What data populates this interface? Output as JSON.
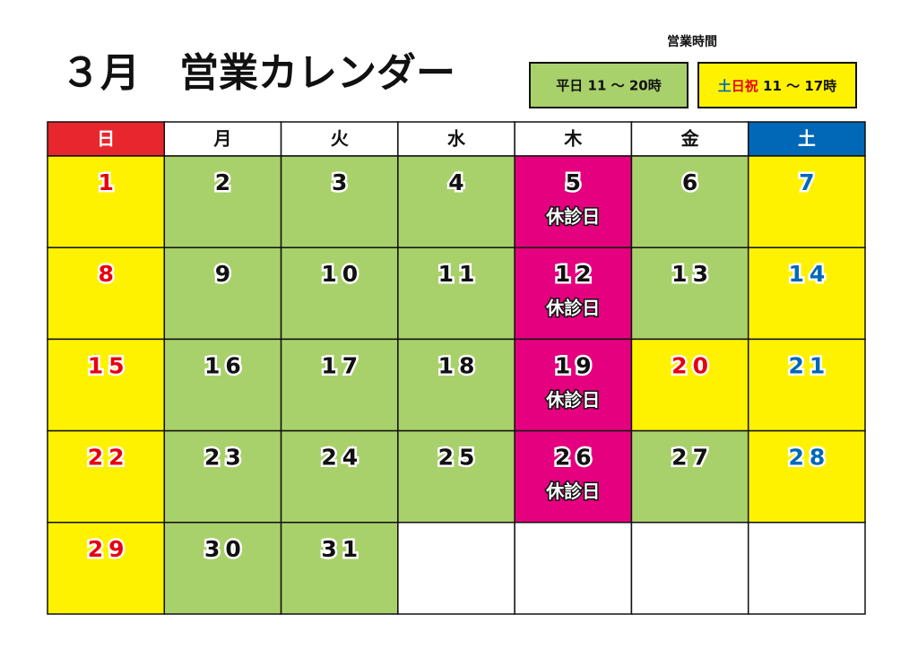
{
  "title": "３月　営業カレンダー",
  "hours": {
    "heading": "営業時間",
    "weekday": "平日 11 ～ 20時",
    "holiday": {
      "sat": "土",
      "sun": "日祝",
      "time": " 11 ～ 17時"
    }
  },
  "weekdays": [
    "日",
    "月",
    "火",
    "水",
    "木",
    "金",
    "土"
  ],
  "cell_colors": {
    "sun": "#fff200",
    "sat": "#fff200",
    "holiday": "#fff200",
    "weekday": "#a9d16b",
    "closed": "#e4007f"
  },
  "text_colors": {
    "sun": "#e60012",
    "sat": "#0068b7",
    "holiday": "#e60012",
    "weekday": "#111111",
    "closed": "#111111"
  },
  "weeks": [
    [
      {
        "day": 1,
        "type": "sun"
      },
      {
        "day": 2,
        "type": "weekday"
      },
      {
        "day": 3,
        "type": "weekday"
      },
      {
        "day": 4,
        "type": "weekday"
      },
      {
        "day": 5,
        "type": "closed",
        "note": "休診日"
      },
      {
        "day": 6,
        "type": "weekday"
      },
      {
        "day": 7,
        "type": "sat"
      }
    ],
    [
      {
        "day": 8,
        "type": "sun"
      },
      {
        "day": 9,
        "type": "weekday"
      },
      {
        "day": 10,
        "type": "weekday"
      },
      {
        "day": 11,
        "type": "weekday"
      },
      {
        "day": 12,
        "type": "closed",
        "note": "休診日"
      },
      {
        "day": 13,
        "type": "weekday"
      },
      {
        "day": 14,
        "type": "sat"
      }
    ],
    [
      {
        "day": 15,
        "type": "sun"
      },
      {
        "day": 16,
        "type": "weekday"
      },
      {
        "day": 17,
        "type": "weekday"
      },
      {
        "day": 18,
        "type": "weekday"
      },
      {
        "day": 19,
        "type": "closed",
        "note": "休診日"
      },
      {
        "day": 20,
        "type": "holiday"
      },
      {
        "day": 21,
        "type": "sat"
      }
    ],
    [
      {
        "day": 22,
        "type": "sun"
      },
      {
        "day": 23,
        "type": "weekday"
      },
      {
        "day": 24,
        "type": "weekday"
      },
      {
        "day": 25,
        "type": "weekday"
      },
      {
        "day": 26,
        "type": "closed",
        "note": "休診日"
      },
      {
        "day": 27,
        "type": "weekday"
      },
      {
        "day": 28,
        "type": "sat"
      }
    ],
    [
      {
        "day": 29,
        "type": "sun"
      },
      {
        "day": 30,
        "type": "weekday"
      },
      {
        "day": 31,
        "type": "weekday"
      }
    ]
  ]
}
